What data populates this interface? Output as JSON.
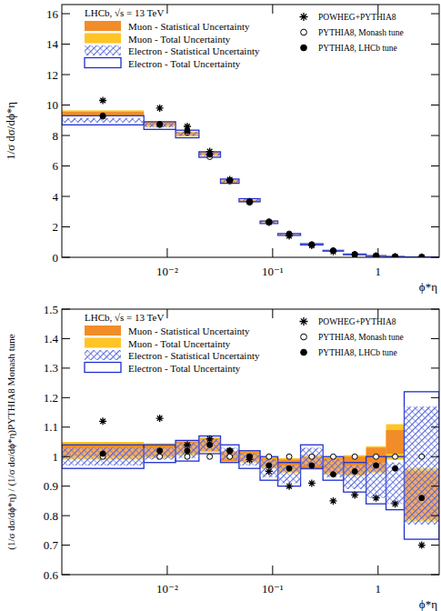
{
  "chart_data": [
    {
      "type": "band_and_points",
      "annotation": "LHCb, √s = 13 TeV",
      "y_label": "1/σ dσ/dϕ*η",
      "x_label": "ϕ*η",
      "log": "x",
      "grid": false,
      "legend": "top",
      "bins": [
        0.001,
        0.006,
        0.012,
        0.02,
        0.032,
        0.048,
        0.076,
        0.112,
        0.184,
        0.3,
        0.47,
        0.77,
        1.19,
        1.77,
        3.8
      ],
      "xlim": [
        0.001,
        3.8
      ],
      "xticks": [
        {
          "value": 0.01,
          "label": "10⁻²"
        },
        {
          "value": 0.1,
          "label": "10⁻¹"
        },
        1
      ],
      "ylim": [
        0,
        16.6
      ],
      "yticks": [
        0,
        2,
        4,
        6,
        8,
        10,
        12,
        14,
        16
      ],
      "series": [
        {
          "name": "Muon - Total Uncertainty",
          "type": "band",
          "color": "#ffc425",
          "values": [
            9.45,
            8.75,
            8.1,
            6.8,
            5.0,
            3.7,
            2.35,
            1.5,
            0.85,
            0.45,
            0.2,
            0.1,
            0.05,
            0.02
          ],
          "errors": [
            0.2,
            0.18,
            0.16,
            0.13,
            0.1,
            0.08,
            0.06,
            0.04,
            0.03,
            0.02,
            0.012,
            0.01,
            0.006,
            0.004
          ]
        },
        {
          "name": "Muon - Statistical Uncertainty",
          "type": "band",
          "color": "#f28c28",
          "values": [
            9.45,
            8.75,
            8.1,
            6.8,
            5.0,
            3.7,
            2.35,
            1.5,
            0.85,
            0.45,
            0.2,
            0.1,
            0.05,
            0.02
          ],
          "errors": [
            0.1,
            0.1,
            0.1,
            0.08,
            0.06,
            0.05,
            0.04,
            0.03,
            0.02,
            0.015,
            0.01,
            0.008,
            0.005,
            0.003
          ]
        },
        {
          "name": "Electron - Total Uncertainty",
          "type": "outline_band",
          "color": "#1f2fd0",
          "values": [
            9.0,
            8.65,
            8.1,
            6.75,
            5.0,
            3.75,
            2.3,
            1.5,
            0.85,
            0.43,
            0.2,
            0.1,
            0.05,
            0.02
          ],
          "errors": [
            0.3,
            0.25,
            0.25,
            0.18,
            0.14,
            0.1,
            0.08,
            0.06,
            0.04,
            0.025,
            0.015,
            0.01,
            0.006,
            0.004
          ]
        },
        {
          "name": "Electron - Statistical Uncertainty",
          "type": "hatched_band",
          "color": "#5566d8",
          "values": [
            9.0,
            8.65,
            8.1,
            6.75,
            5.0,
            3.75,
            2.3,
            1.5,
            0.85,
            0.43,
            0.2,
            0.1,
            0.05,
            0.02
          ],
          "errors": [
            0.15,
            0.12,
            0.12,
            0.1,
            0.08,
            0.06,
            0.05,
            0.04,
            0.03,
            0.02,
            0.01,
            0.008,
            0.005,
            0.003
          ]
        },
        {
          "name": "POWHEG+PYTHIA8",
          "type": "points",
          "marker": "star",
          "color": "#000000",
          "values": [
            10.3,
            9.8,
            8.6,
            6.95,
            5.1,
            3.65,
            2.3,
            1.4,
            0.78,
            0.38,
            0.17,
            0.085,
            0.04,
            0.015
          ]
        },
        {
          "name": "PYTHIA8, Monash tune",
          "type": "points",
          "marker": "open_circle",
          "color": "#000000",
          "values": [
            9.25,
            8.7,
            8.2,
            6.6,
            5.0,
            3.6,
            2.35,
            1.55,
            0.85,
            0.45,
            0.2,
            0.1,
            0.05,
            0.02
          ]
        },
        {
          "name": "PYTHIA8, LHCb tune",
          "type": "points",
          "marker": "filled_circle",
          "color": "#000000",
          "values": [
            9.3,
            8.75,
            8.3,
            6.75,
            5.05,
            3.65,
            2.3,
            1.5,
            0.82,
            0.43,
            0.19,
            0.095,
            0.047,
            0.018
          ]
        }
      ]
    },
    {
      "type": "band_and_points",
      "annotation": "LHCb, √s = 13 TeV",
      "y_label": "(1/σ dσ/dϕ*η) / (1/σ dσ/dϕ*η)PYTHIA8 Monash tune",
      "x_label": "ϕ*η",
      "log": "x",
      "grid": false,
      "legend": "top",
      "bins": [
        0.001,
        0.006,
        0.012,
        0.02,
        0.032,
        0.048,
        0.076,
        0.112,
        0.184,
        0.3,
        0.47,
        0.77,
        1.19,
        1.77,
        3.8
      ],
      "xlim": [
        0.001,
        3.8
      ],
      "xticks": [
        {
          "value": 0.01,
          "label": "10⁻²"
        },
        {
          "value": 0.1,
          "label": "10⁻¹"
        },
        1
      ],
      "ylim": [
        0.6,
        1.5
      ],
      "yticks": [
        0.6,
        0.7,
        0.8,
        0.9,
        1,
        1.1,
        1.2,
        1.3,
        1.4,
        1.5
      ],
      "series": [
        {
          "name": "Muon - Total Uncertainty",
          "type": "band",
          "color": "#ffc425",
          "values": [
            1.02,
            1.02,
            1.03,
            1.04,
            1.0,
            1.0,
            0.98,
            0.97,
            0.98,
            0.97,
            0.97,
            0.99,
            1.05,
            0.87
          ],
          "errors": [
            0.03,
            0.025,
            0.025,
            0.025,
            0.02,
            0.02,
            0.02,
            0.025,
            0.025,
            0.03,
            0.035,
            0.045,
            0.06,
            0.09
          ]
        },
        {
          "name": "Muon - Statistical Uncertainty",
          "type": "band",
          "color": "#f28c28",
          "values": [
            1.02,
            1.02,
            1.03,
            1.04,
            1.0,
            1.0,
            0.98,
            0.97,
            0.98,
            0.97,
            0.97,
            0.99,
            1.05,
            0.87
          ],
          "errors": [
            0.02,
            0.02,
            0.02,
            0.02,
            0.015,
            0.015,
            0.015,
            0.02,
            0.02,
            0.025,
            0.03,
            0.04,
            0.04,
            0.08
          ]
        },
        {
          "name": "Electron - Total Uncertainty",
          "type": "outline_band",
          "color": "#1f2fd0",
          "values": [
            1.0,
            1.01,
            1.02,
            1.04,
            1.01,
            0.99,
            0.96,
            0.94,
            1.0,
            0.96,
            0.93,
            0.92,
            0.91,
            0.97
          ],
          "errors": [
            0.04,
            0.03,
            0.035,
            0.03,
            0.03,
            0.03,
            0.04,
            0.04,
            0.04,
            0.04,
            0.05,
            0.08,
            0.09,
            0.25
          ]
        },
        {
          "name": "Electron - Statistical Uncertainty",
          "type": "hatched_band",
          "color": "#5566d8",
          "values": [
            1.0,
            1.01,
            1.02,
            1.04,
            1.01,
            0.99,
            0.96,
            0.94,
            1.0,
            0.96,
            0.93,
            0.92,
            0.91,
            0.97
          ],
          "errors": [
            0.03,
            0.02,
            0.025,
            0.02,
            0.02,
            0.02,
            0.03,
            0.03,
            0.03,
            0.03,
            0.04,
            0.06,
            0.07,
            0.2
          ]
        },
        {
          "name": "POWHEG+PYTHIA8",
          "type": "points",
          "marker": "star",
          "color": "#000000",
          "values": [
            1.12,
            1.13,
            1.04,
            1.06,
            1.02,
            0.99,
            0.95,
            0.9,
            0.91,
            0.85,
            0.87,
            0.86,
            0.84,
            0.7
          ]
        },
        {
          "name": "PYTHIA8, Monash tune",
          "type": "points",
          "marker": "open_circle",
          "color": "#000000",
          "values": [
            1,
            1,
            1,
            1,
            1,
            1,
            1,
            1,
            1,
            1,
            1,
            1,
            1,
            1
          ]
        },
        {
          "name": "PYTHIA8, LHCb tune",
          "type": "points",
          "marker": "filled_circle",
          "color": "#000000",
          "values": [
            1.01,
            1.02,
            1.02,
            1.04,
            1.02,
            1.0,
            0.97,
            0.96,
            0.97,
            0.94,
            0.95,
            0.97,
            0.96,
            0.86
          ]
        }
      ]
    }
  ]
}
